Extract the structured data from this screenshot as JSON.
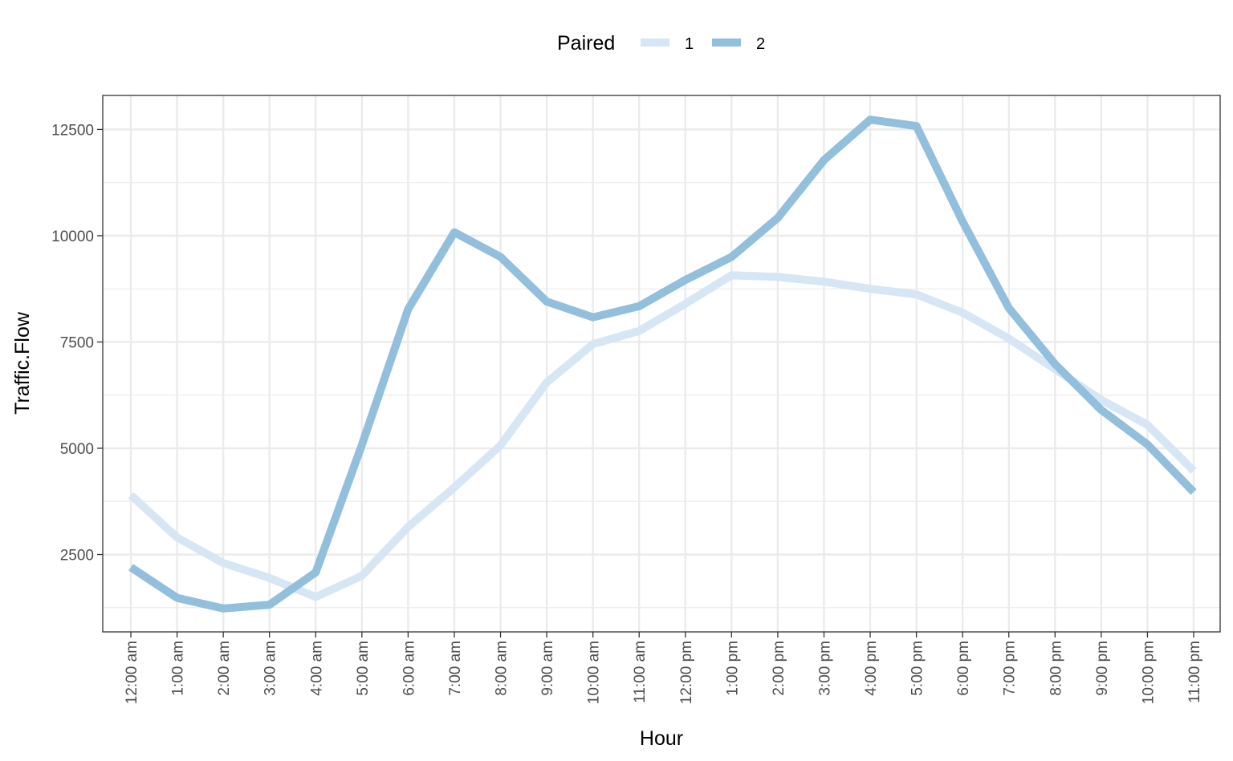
{
  "chart_data": {
    "type": "line",
    "title": "",
    "xlabel": "Hour",
    "ylabel": "Traffic.Flow",
    "legend": {
      "title": "Paired",
      "position": "top"
    },
    "categories": [
      "12:00 am",
      "1:00 am",
      "2:00 am",
      "3:00 am",
      "4:00 am",
      "5:00 am",
      "6:00 am",
      "7:00 am",
      "8:00 am",
      "9:00 am",
      "10:00 am",
      "11:00 am",
      "12:00 pm",
      "1:00 pm",
      "2:00 pm",
      "3:00 pm",
      "4:00 pm",
      "5:00 pm",
      "6:00 pm",
      "7:00 pm",
      "8:00 pm",
      "9:00 pm",
      "10:00 pm",
      "11:00 pm"
    ],
    "y_ticks": [
      "2500",
      "5000",
      "7500",
      "10000",
      "12500"
    ],
    "ylim": [
      680,
      13300
    ],
    "grid": true,
    "series": [
      {
        "name": "1",
        "color": "#d6e6f4",
        "values": [
          3900,
          2900,
          2300,
          1950,
          1500,
          2000,
          3150,
          4080,
          5070,
          6550,
          7450,
          7760,
          8400,
          9070,
          9030,
          8920,
          8750,
          8620,
          8190,
          7580,
          6860,
          6140,
          5550,
          4470
        ]
      },
      {
        "name": "2",
        "color": "#92bfdc",
        "values": [
          2200,
          1480,
          1230,
          1320,
          2080,
          5080,
          8270,
          10080,
          9500,
          8450,
          8080,
          8340,
          8960,
          9500,
          10420,
          11780,
          12730,
          12580,
          10330,
          8300,
          6980,
          5900,
          5090,
          3970
        ]
      }
    ]
  }
}
